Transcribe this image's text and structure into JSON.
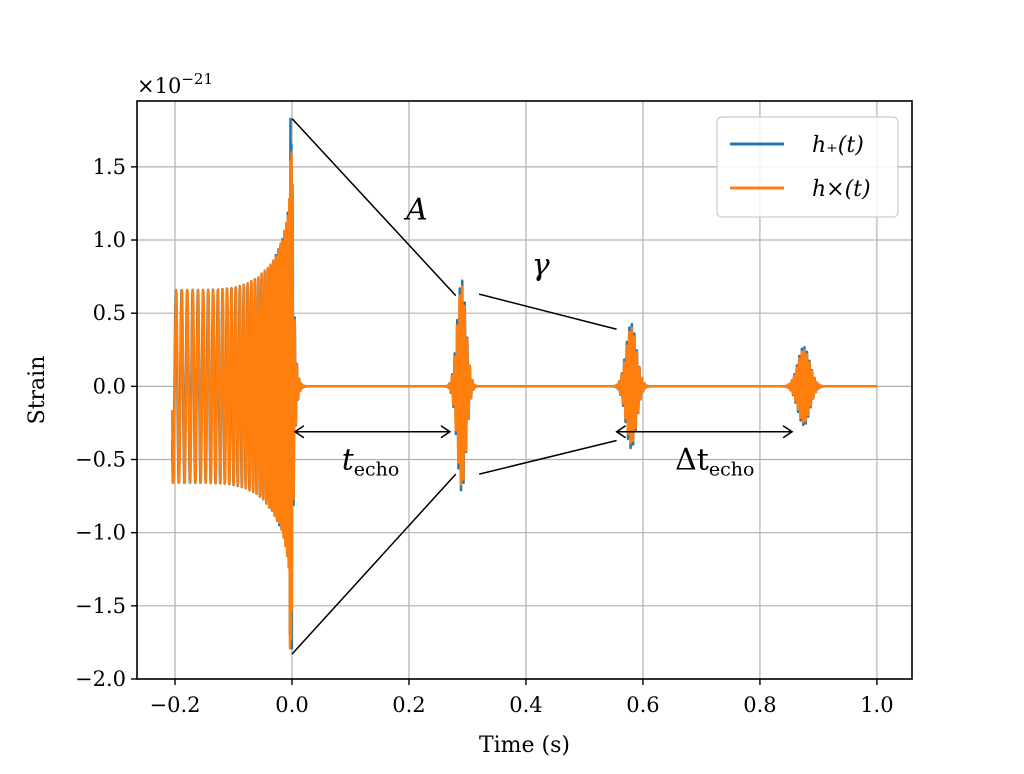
{
  "chart_data": {
    "type": "line",
    "xlabel": "Time (s)",
    "ylabel": "Strain",
    "y_exponent_label": "×10",
    "y_exponent_power": "−21",
    "xlim": [
      -0.265,
      1.06
    ],
    "ylim": [
      -2.0,
      1.95
    ],
    "x_ticks": [
      -0.2,
      0.0,
      0.2,
      0.4,
      0.6,
      0.8,
      1.0
    ],
    "x_tick_labels": [
      "−0.2",
      "0.0",
      "0.2",
      "0.4",
      "0.6",
      "0.8",
      "1.0"
    ],
    "y_ticks": [
      -2.0,
      -1.5,
      -1.0,
      -0.5,
      0.0,
      0.5,
      1.0,
      1.5
    ],
    "y_tick_labels": [
      "−2.0",
      "−1.5",
      "−1.0",
      "−0.5",
      "0.0",
      "0.5",
      "1.0",
      "1.5"
    ],
    "grid": true,
    "legend_position": "top-right",
    "series": [
      {
        "name": "h₊(t)",
        "color": "#1f77b4",
        "description_values": {
          "inspiral_start": -0.205,
          "merger_time": 0.0,
          "merger_peak": 1.83,
          "merger_trough": -1.83,
          "echo_times": [
            0.29,
            0.58,
            0.875
          ],
          "echo_peaks": [
            0.73,
            0.43,
            0.27
          ]
        }
      },
      {
        "name": "h×(t)",
        "color": "#ff7f0e",
        "description_values": {
          "inspiral_start": -0.205,
          "merger_time": 0.0,
          "merger_peak": 1.67,
          "merger_trough": -1.8,
          "echo_times": [
            0.29,
            0.58,
            0.875
          ],
          "echo_peaks": [
            0.69,
            0.4,
            0.25
          ]
        }
      }
    ],
    "annotations": {
      "amplitude_label": "A",
      "damping_label": "γ",
      "echo_time_label": "t",
      "echo_time_sub": "echo",
      "echo_interval_label": "Δt",
      "echo_interval_sub": "echo"
    },
    "envelope_lines": [
      {
        "from": [
          0.0,
          1.83
        ],
        "to": [
          0.28,
          0.62
        ]
      },
      {
        "from": [
          0.0,
          -1.83
        ],
        "to": [
          0.28,
          -0.6
        ]
      },
      {
        "from": [
          0.32,
          0.63
        ],
        "to": [
          0.555,
          0.39
        ]
      },
      {
        "from": [
          0.32,
          -0.6
        ],
        "to": [
          0.555,
          -0.37
        ]
      }
    ],
    "arrows": [
      {
        "from": [
          0.005,
          -0.31
        ],
        "to": [
          0.27,
          -0.31
        ]
      },
      {
        "from": [
          0.555,
          -0.31
        ],
        "to": [
          0.855,
          -0.31
        ]
      }
    ]
  }
}
